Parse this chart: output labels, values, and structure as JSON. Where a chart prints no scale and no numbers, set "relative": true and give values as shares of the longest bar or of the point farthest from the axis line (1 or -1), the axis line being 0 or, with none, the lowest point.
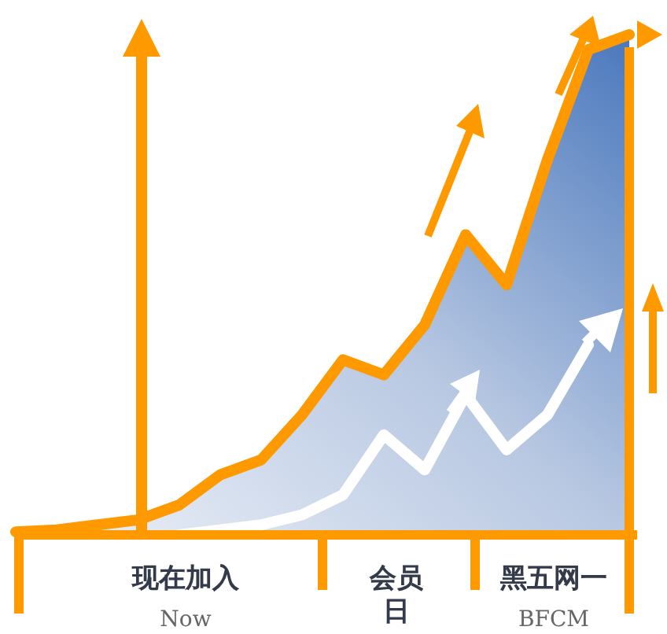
{
  "chart_data": {
    "type": "line",
    "relative": true,
    "categories": [
      null,
      null,
      null,
      null,
      null,
      null,
      null,
      null,
      null,
      null,
      null,
      null,
      null,
      null,
      null,
      null
    ],
    "annotations": [
      "现在加入",
      "Now",
      "会员日",
      "黑五网一",
      "BFCM"
    ],
    "series": [
      {
        "type": "area",
        "color": "#ff9900",
        "values": [
          0.006,
          0.01,
          0.02,
          0.03,
          0.06,
          0.12,
          0.15,
          0.24,
          0.35,
          0.32,
          0.42,
          0.6,
          0.5,
          0.75,
          0.97,
          1
        ]
      },
      {
        "color": "#ffffff",
        "values": [
          null,
          null,
          null,
          null,
          0,
          0.01,
          0.02,
          0.04,
          0.08,
          0.2,
          0.13,
          0.28,
          0.17,
          0.24,
          0.38,
          null
        ]
      }
    ]
  }
}
